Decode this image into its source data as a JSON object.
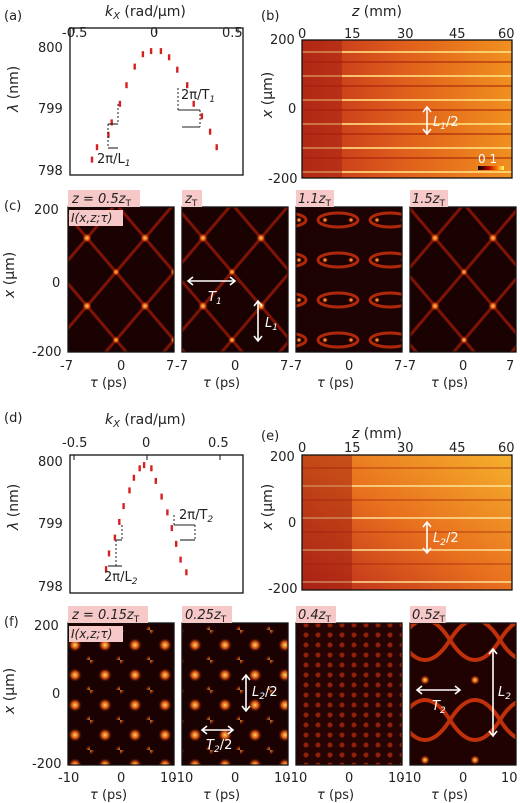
{
  "panels": {
    "a": "(a)",
    "b": "(b)",
    "c": "(c)",
    "d": "(d)",
    "e": "(e)",
    "f": "(f)"
  },
  "axis_labels": {
    "kx": "k",
    "kx_sub": "X",
    "kx_unit": " (rad/μm)",
    "lambda": "λ",
    "lambda_unit": " (nm)",
    "z": "z",
    "z_unit": " (mm)",
    "x": "x",
    "x_unit": " (μm)",
    "tau": "τ",
    "tau_unit": " (ps)"
  },
  "ticks": {
    "kx": [
      "-0.5",
      "0",
      "0.5"
    ],
    "lambda": [
      "800",
      "799",
      "798"
    ],
    "z": [
      "0",
      "15",
      "30",
      "45",
      "60"
    ],
    "x": [
      "200",
      "0",
      "-200"
    ],
    "tau_top": [
      "-7",
      "0",
      "7"
    ],
    "tau_bottom": [
      "-10",
      "0",
      "10"
    ]
  },
  "annotations_top": {
    "two_pi_T": "2π/T",
    "T_sub": "1",
    "two_pi_L": "2π/L",
    "L_sub": "1",
    "L_half": "L",
    "L_half_sub": "1",
    "L_half_tail": "/2",
    "colorbar": "0  1",
    "T_arrow": "T",
    "T_arrow_sub": "1",
    "L_arrow": "L",
    "L_arrow_sub": "1"
  },
  "annotations_bottom": {
    "two_pi_T": "2π/T",
    "T_sub": "2",
    "two_pi_L": "2π/L",
    "L_sub": "2",
    "L_half": "L",
    "L_half_sub": "2",
    "L_half_tail": "/2",
    "L2_half": "L",
    "L2_half_sub": "2",
    "L2_half_tail": "/2",
    "T2_half": "T",
    "T2_half_sub": "2",
    "T2_half_tail": "/2",
    "T2": "T",
    "T2_sub": "2",
    "L2": "L",
    "L2_sub": "2"
  },
  "intensity_label": "I(x,z;τ)",
  "c_labels": [
    "z = 0.5z",
    "z",
    "1.1z",
    "1.5z"
  ],
  "f_labels": [
    "z = 0.15z",
    "0.25z",
    "0.4z",
    "0.5z"
  ],
  "label_sub": "T",
  "chart_data": [
    {
      "panel": "a",
      "type": "scatter",
      "xlabel": "kX (rad/μm)",
      "ylabel": "λ (nm)",
      "xlim": [
        -0.5,
        0.5
      ],
      "ylim": [
        798,
        800
      ],
      "x": [
        -0.39,
        -0.36,
        -0.29,
        -0.27,
        -0.22,
        -0.18,
        -0.13,
        -0.08,
        -0.03,
        0.03,
        0.08,
        0.13,
        0.19,
        0.23,
        0.28,
        0.33,
        0.37
      ],
      "y": [
        798.2,
        798.4,
        798.6,
        798.8,
        799.1,
        799.4,
        799.7,
        799.9,
        799.95,
        799.95,
        799.85,
        799.65,
        799.4,
        799.1,
        798.9,
        798.65,
        798.4
      ]
    },
    {
      "panel": "d",
      "type": "scatter",
      "xlabel": "kX (rad/μm)",
      "ylabel": "λ (nm)",
      "xlim": [
        -0.5,
        0.5
      ],
      "ylim": [
        798,
        800
      ],
      "x": [
        -0.28,
        -0.26,
        -0.22,
        -0.19,
        -0.16,
        -0.12,
        -0.09,
        -0.05,
        -0.02,
        0.03,
        0.06,
        0.1,
        0.14,
        0.17,
        0.2,
        0.23,
        0.27
      ],
      "y": [
        798.3,
        798.55,
        798.8,
        799.05,
        799.3,
        799.55,
        799.75,
        799.9,
        799.95,
        799.9,
        799.7,
        799.45,
        799.2,
        798.95,
        798.7,
        798.45,
        798.25
      ]
    }
  ]
}
